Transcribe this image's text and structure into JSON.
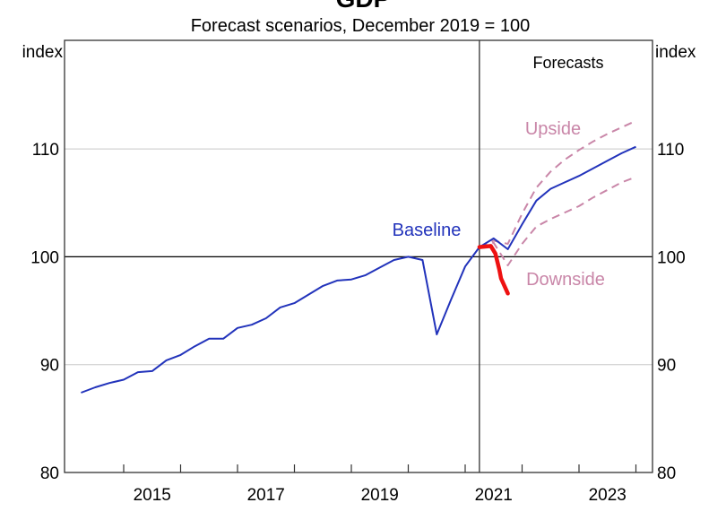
{
  "chart_data": {
    "type": "line",
    "title": "GDP",
    "subtitle": "Forecast scenarios, December 2019 = 100",
    "ylabel_left": "index",
    "ylabel_right": "index",
    "ylim": [
      80,
      120
    ],
    "yticks": [
      80,
      90,
      100,
      110
    ],
    "xlim": [
      2014,
      2024.3
    ],
    "xtick_labels": [
      "2015",
      "2017",
      "2019",
      "2021",
      "2023"
    ],
    "forecast_start": 2021.25,
    "forecast_label": "Forecasts",
    "grid": true,
    "colors": {
      "baseline": "#2233bb",
      "scenario": "#c986a8",
      "annotation": "#ee1111",
      "grid": "#c8c8c8",
      "axis": "#000000"
    },
    "series": [
      {
        "name": "Baseline",
        "style": "solid",
        "x": [
          2014.25,
          2014.5,
          2014.75,
          2015,
          2015.25,
          2015.5,
          2015.75,
          2016,
          2016.25,
          2016.5,
          2016.75,
          2017,
          2017.25,
          2017.5,
          2017.75,
          2018,
          2018.25,
          2018.5,
          2018.75,
          2019,
          2019.25,
          2019.5,
          2019.75,
          2020,
          2020.25,
          2020.5,
          2020.75,
          2021,
          2021.25,
          2021.5,
          2021.75,
          2022,
          2022.25,
          2022.5,
          2022.75,
          2023,
          2023.25,
          2023.5,
          2023.75,
          2024
        ],
        "values": [
          87.4,
          87.9,
          88.3,
          88.6,
          89.3,
          89.4,
          90.4,
          90.9,
          91.7,
          92.4,
          92.4,
          93.4,
          93.7,
          94.3,
          95.3,
          95.7,
          96.5,
          97.3,
          97.8,
          97.9,
          98.3,
          99.0,
          99.7,
          100.0,
          99.7,
          92.8,
          96.0,
          99.1,
          100.9,
          101.7,
          100.7,
          103.0,
          105.2,
          106.3,
          106.9,
          107.5,
          108.2,
          108.9,
          109.6,
          110.2
        ]
      },
      {
        "name": "Upside",
        "style": "dashed",
        "x": [
          2021.25,
          2021.5,
          2021.75,
          2022,
          2022.25,
          2022.5,
          2022.75,
          2023,
          2023.25,
          2023.5,
          2023.75,
          2024
        ],
        "values": [
          100.9,
          101.5,
          101.2,
          104.0,
          106.4,
          107.9,
          109.0,
          109.9,
          110.7,
          111.4,
          112.0,
          112.6
        ]
      },
      {
        "name": "Downside",
        "style": "dashed",
        "x": [
          2021.25,
          2021.5,
          2021.75,
          2022,
          2022.25,
          2022.5,
          2022.75,
          2023,
          2023.25,
          2023.5,
          2023.75,
          2024
        ],
        "values": [
          100.9,
          101.3,
          99.2,
          101.2,
          102.8,
          103.5,
          104.1,
          104.7,
          105.5,
          106.2,
          106.9,
          107.4
        ]
      }
    ],
    "annotation_line": {
      "x": [
        2021.25,
        2021.45,
        2021.53,
        2021.6,
        2021.63,
        2021.75
      ],
      "values": [
        100.9,
        101.0,
        100.3,
        98.8,
        98.0,
        96.6
      ]
    }
  }
}
